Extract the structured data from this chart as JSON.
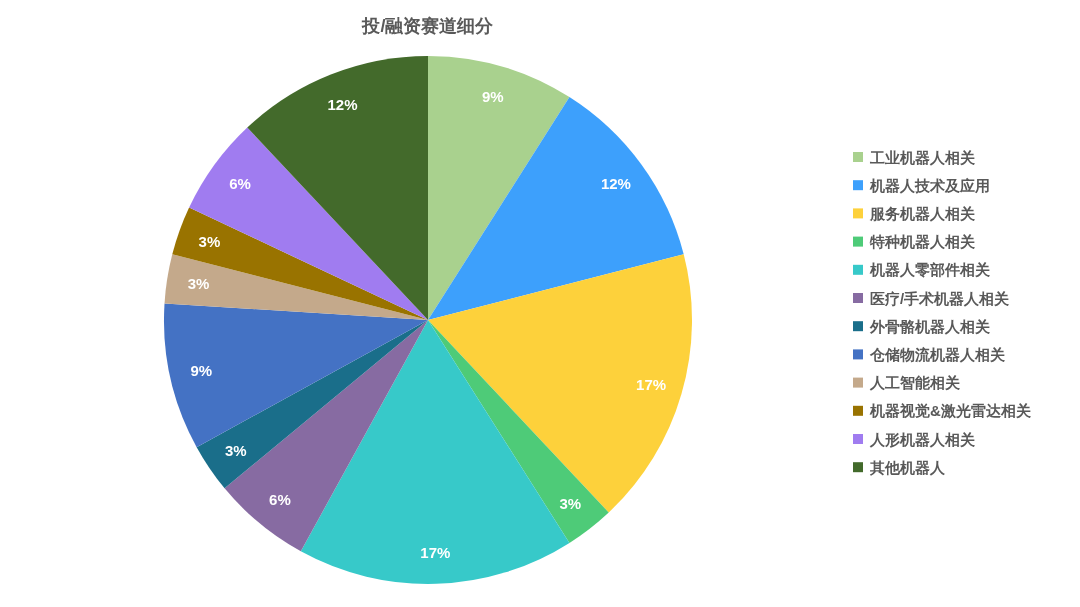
{
  "chart_data": {
    "type": "pie",
    "title": "投/融资赛道细分",
    "categories": [
      "工业机器人相关",
      "机器人技术及应用",
      "服务机器人相关",
      "特种机器人相关",
      "机器人零部件相关",
      "医疗/手术机器人相关",
      "外骨骼机器人相关",
      "仓储物流机器人相关",
      "人工智能相关",
      "机器视觉&激光雷达相关",
      "人形机器人相关",
      "其他机器人"
    ],
    "values": [
      9,
      12,
      17,
      3,
      17,
      6,
      3,
      9,
      3,
      3,
      6,
      12
    ],
    "value_labels": [
      "9%",
      "12%",
      "17%",
      "3%",
      "17%",
      "6%",
      "3%",
      "9%",
      "3%",
      "3%",
      "6%",
      "12%"
    ],
    "colors": [
      "#a9d18e",
      "#3da0fc",
      "#fdd13b",
      "#4ecb78",
      "#37c9c9",
      "#876ba2",
      "#1a6e8a",
      "#4472c4",
      "#c4a98b",
      "#997300",
      "#a07cf0",
      "#436a2b"
    ],
    "legend": "right"
  }
}
